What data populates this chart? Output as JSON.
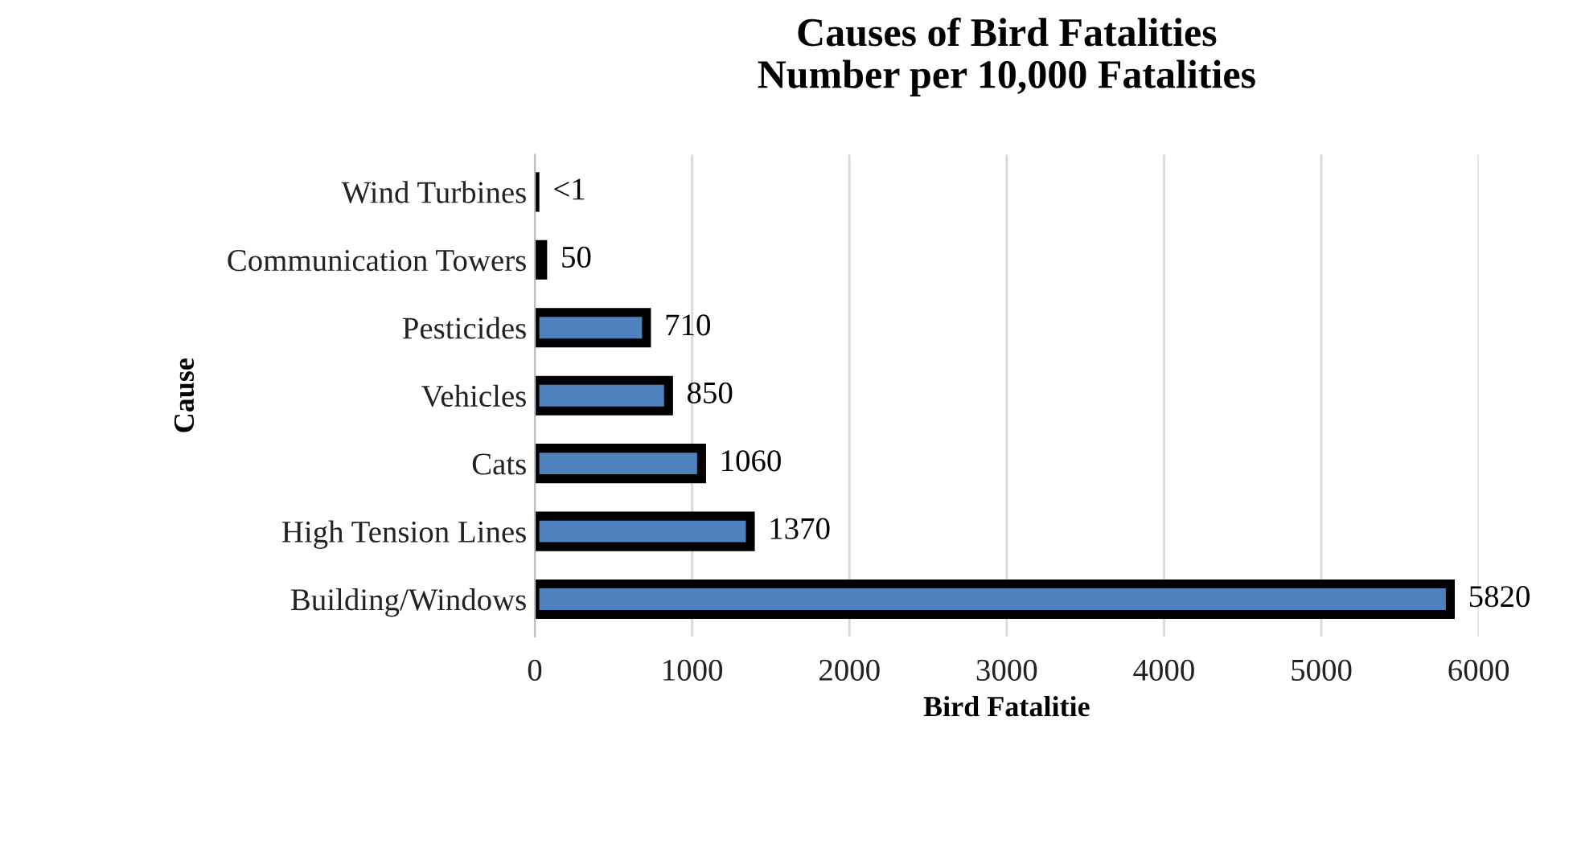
{
  "chart_data": {
    "type": "bar",
    "orientation": "horizontal",
    "title": "Causes of Bird Fatalities\nNumber per 10,000 Fatalities",
    "xlabel": "Bird Fatalitie",
    "ylabel": "Cause",
    "categories": [
      "Wind Turbines",
      "Communication Towers",
      "Pesticides",
      "Vehicles",
      "Cats",
      "High Tension Lines",
      "Building/Windows"
    ],
    "values": [
      0.5,
      50,
      710,
      850,
      1060,
      1370,
      5820
    ],
    "value_labels": [
      "<1",
      "50",
      "710",
      "850",
      "1060",
      "1370",
      "5820"
    ],
    "color": "#4f81bd",
    "xlim": [
      0,
      6000
    ],
    "xticks": [
      0,
      1000,
      2000,
      3000,
      4000,
      5000,
      6000
    ],
    "grid": "x",
    "legend": false
  }
}
